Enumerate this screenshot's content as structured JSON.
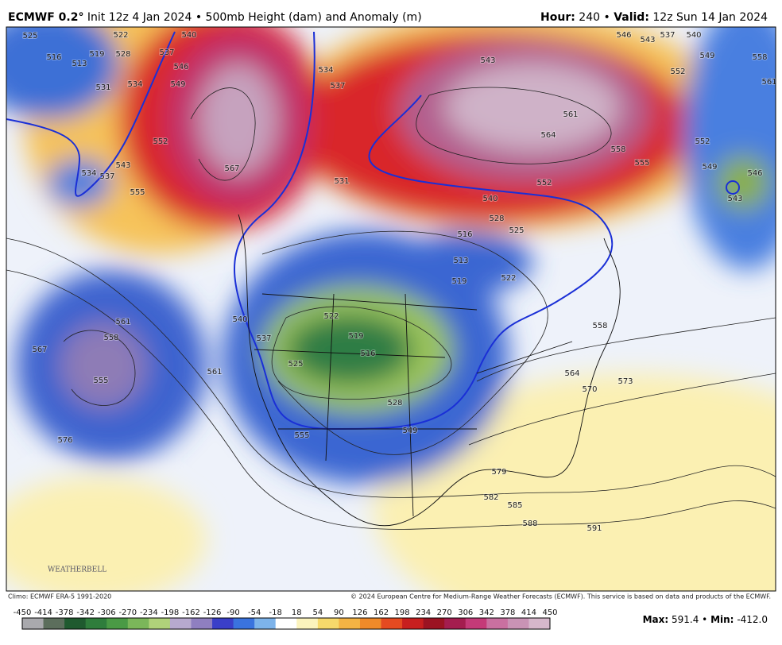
{
  "header": {
    "model": "ECMWF 0.2°",
    "init": "Init 12z 4 Jan 2024",
    "separator": "•",
    "product": "500mb Height (dam) and Anomaly (m)",
    "hour_label": "Hour:",
    "hour": 240,
    "valid_label": "Valid:",
    "valid": "12z Sun 14 Jan 2024"
  },
  "map": {
    "logo": "WEATHERBELL",
    "contour_labels": [
      525,
      516,
      513,
      519,
      522,
      528,
      531,
      534,
      537,
      540,
      546,
      549,
      552,
      543,
      537,
      534,
      555,
      567,
      534,
      537,
      531,
      543,
      561,
      564,
      558,
      555,
      552,
      540,
      528,
      525,
      516,
      513,
      519,
      522,
      552,
      549,
      546,
      543,
      540,
      549,
      558,
      561,
      537,
      543,
      546,
      552,
      561,
      558,
      555,
      567,
      576,
      561,
      540,
      537,
      522,
      519,
      516,
      525,
      528,
      549,
      555,
      558,
      564,
      570,
      573,
      579,
      582,
      585,
      588,
      591
    ]
  },
  "footer": {
    "climo": "Climo: ECMWF ERA-5 1991-2020",
    "copyright": "© 2024 European Centre for Medium-Range Weather Forecasts (ECMWF). This service is based on data and products of the ECMWF."
  },
  "colorbar": {
    "ticks": [
      -450,
      -414,
      -378,
      -342,
      -306,
      -270,
      -234,
      -198,
      -162,
      -126,
      -90,
      -54,
      -18,
      18,
      54,
      90,
      126,
      162,
      198,
      234,
      270,
      306,
      342,
      378,
      414,
      450
    ],
    "max_label": "Max:",
    "max": 591.4,
    "min_label": "Min:",
    "min": "-412.0"
  }
}
